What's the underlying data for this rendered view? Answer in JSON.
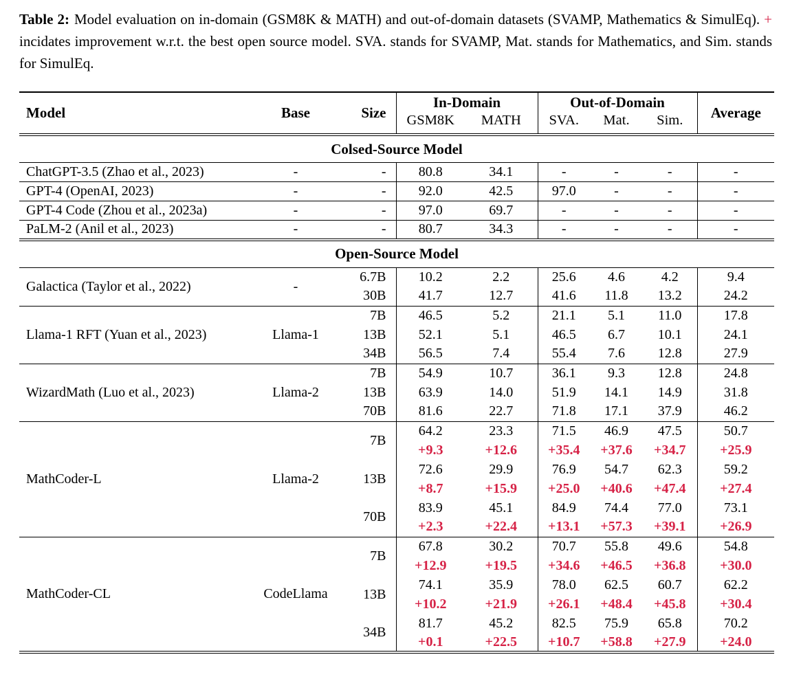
{
  "caption": {
    "label": "Table 2:",
    "text_before_plus": "Model evaluation on in-domain (GSM8K & MATH) and out-of-domain datasets (SVAMP, Mathematics & SimulEq).",
    "plus_sign": "+",
    "text_after_plus": "incidates improvement w.r.t. the best open source model. SVA. stands for SVAMP, Mat. stands for Mathematics, and Sim. stands for SimulEq."
  },
  "colors": {
    "accent_red": "#d62246",
    "text": "#000000",
    "page_background": "#ffffff"
  },
  "table": {
    "header": {
      "model": "Model",
      "base": "Base",
      "size": "Size",
      "in_domain": "In-Domain",
      "out_of_domain": "Out-of-Domain",
      "average": "Average",
      "in_domain_sub": [
        "GSM8K",
        "MATH"
      ],
      "out_of_domain_sub": [
        "SVA.",
        "Mat.",
        "Sim."
      ]
    },
    "value_columns": [
      "gsm8k",
      "math",
      "sva",
      "mat",
      "sim",
      "average"
    ],
    "sections": [
      {
        "title": "Colsed-Source Model",
        "groups": [
          {
            "model": "ChatGPT-3.5 (Zhao et al., 2023)",
            "base": "-",
            "rows": [
              {
                "size": "-",
                "values": [
                  "80.8",
                  "34.1",
                  "-",
                  "-",
                  "-",
                  "-"
                ]
              }
            ]
          },
          {
            "model": "GPT-4 (OpenAI, 2023)",
            "base": "-",
            "rows": [
              {
                "size": "-",
                "values": [
                  "92.0",
                  "42.5",
                  "97.0",
                  "-",
                  "-",
                  "-"
                ]
              }
            ]
          },
          {
            "model": "GPT-4 Code (Zhou et al., 2023a)",
            "base": "-",
            "rows": [
              {
                "size": "-",
                "values": [
                  "97.0",
                  "69.7",
                  "-",
                  "-",
                  "-",
                  "-"
                ]
              }
            ]
          },
          {
            "model": "PaLM-2 (Anil et al., 2023)",
            "base": "-",
            "rows": [
              {
                "size": "-",
                "values": [
                  "80.7",
                  "34.3",
                  "-",
                  "-",
                  "-",
                  "-"
                ]
              }
            ]
          }
        ]
      },
      {
        "title": "Open-Source Model",
        "groups": [
          {
            "model": "Galactica (Taylor et al., 2022)",
            "base": "-",
            "rows": [
              {
                "size": "6.7B",
                "values": [
                  "10.2",
                  "2.2",
                  "25.6",
                  "4.6",
                  "4.2",
                  "9.4"
                ]
              },
              {
                "size": "30B",
                "values": [
                  "41.7",
                  "12.7",
                  "41.6",
                  "11.8",
                  "13.2",
                  "24.2"
                ]
              }
            ]
          },
          {
            "model": "Llama-1 RFT (Yuan et al., 2023)",
            "base": "Llama-1",
            "rows": [
              {
                "size": "7B",
                "values": [
                  "46.5",
                  "5.2",
                  "21.1",
                  "5.1",
                  "11.0",
                  "17.8"
                ]
              },
              {
                "size": "13B",
                "values": [
                  "52.1",
                  "5.1",
                  "46.5",
                  "6.7",
                  "10.1",
                  "24.1"
                ]
              },
              {
                "size": "34B",
                "values": [
                  "56.5",
                  "7.4",
                  "55.4",
                  "7.6",
                  "12.8",
                  "27.9"
                ]
              }
            ]
          },
          {
            "model": "WizardMath (Luo et al., 2023)",
            "base": "Llama-2",
            "rows": [
              {
                "size": "7B",
                "values": [
                  "54.9",
                  "10.7",
                  "36.1",
                  "9.3",
                  "12.8",
                  "24.8"
                ]
              },
              {
                "size": "13B",
                "values": [
                  "63.9",
                  "14.0",
                  "51.9",
                  "14.1",
                  "14.9",
                  "31.8"
                ]
              },
              {
                "size": "70B",
                "values": [
                  "81.6",
                  "22.7",
                  "71.8",
                  "17.1",
                  "37.9",
                  "46.2"
                ]
              }
            ]
          },
          {
            "model": "MathCoder-L",
            "base": "Llama-2",
            "rows": [
              {
                "size": "7B",
                "values": [
                  "64.2",
                  "23.3",
                  "71.5",
                  "46.9",
                  "47.5",
                  "50.7"
                ],
                "improvement": [
                  "+9.3",
                  "+12.6",
                  "+35.4",
                  "+37.6",
                  "+34.7",
                  "+25.9"
                ]
              },
              {
                "size": "13B",
                "values": [
                  "72.6",
                  "29.9",
                  "76.9",
                  "54.7",
                  "62.3",
                  "59.2"
                ],
                "improvement": [
                  "+8.7",
                  "+15.9",
                  "+25.0",
                  "+40.6",
                  "+47.4",
                  "+27.4"
                ]
              },
              {
                "size": "70B",
                "values": [
                  "83.9",
                  "45.1",
                  "84.9",
                  "74.4",
                  "77.0",
                  "73.1"
                ],
                "improvement": [
                  "+2.3",
                  "+22.4",
                  "+13.1",
                  "+57.3",
                  "+39.1",
                  "+26.9"
                ]
              }
            ]
          },
          {
            "model": "MathCoder-CL",
            "base": "CodeLlama",
            "rows": [
              {
                "size": "7B",
                "values": [
                  "67.8",
                  "30.2",
                  "70.7",
                  "55.8",
                  "49.6",
                  "54.8"
                ],
                "improvement": [
                  "+12.9",
                  "+19.5",
                  "+34.6",
                  "+46.5",
                  "+36.8",
                  "+30.0"
                ]
              },
              {
                "size": "13B",
                "values": [
                  "74.1",
                  "35.9",
                  "78.0",
                  "62.5",
                  "60.7",
                  "62.2"
                ],
                "improvement": [
                  "+10.2",
                  "+21.9",
                  "+26.1",
                  "+48.4",
                  "+45.8",
                  "+30.4"
                ]
              },
              {
                "size": "34B",
                "values": [
                  "81.7",
                  "45.2",
                  "82.5",
                  "75.9",
                  "65.8",
                  "70.2"
                ],
                "improvement": [
                  "+0.1",
                  "+22.5",
                  "+10.7",
                  "+58.8",
                  "+27.9",
                  "+24.0"
                ]
              }
            ]
          }
        ]
      }
    ]
  }
}
